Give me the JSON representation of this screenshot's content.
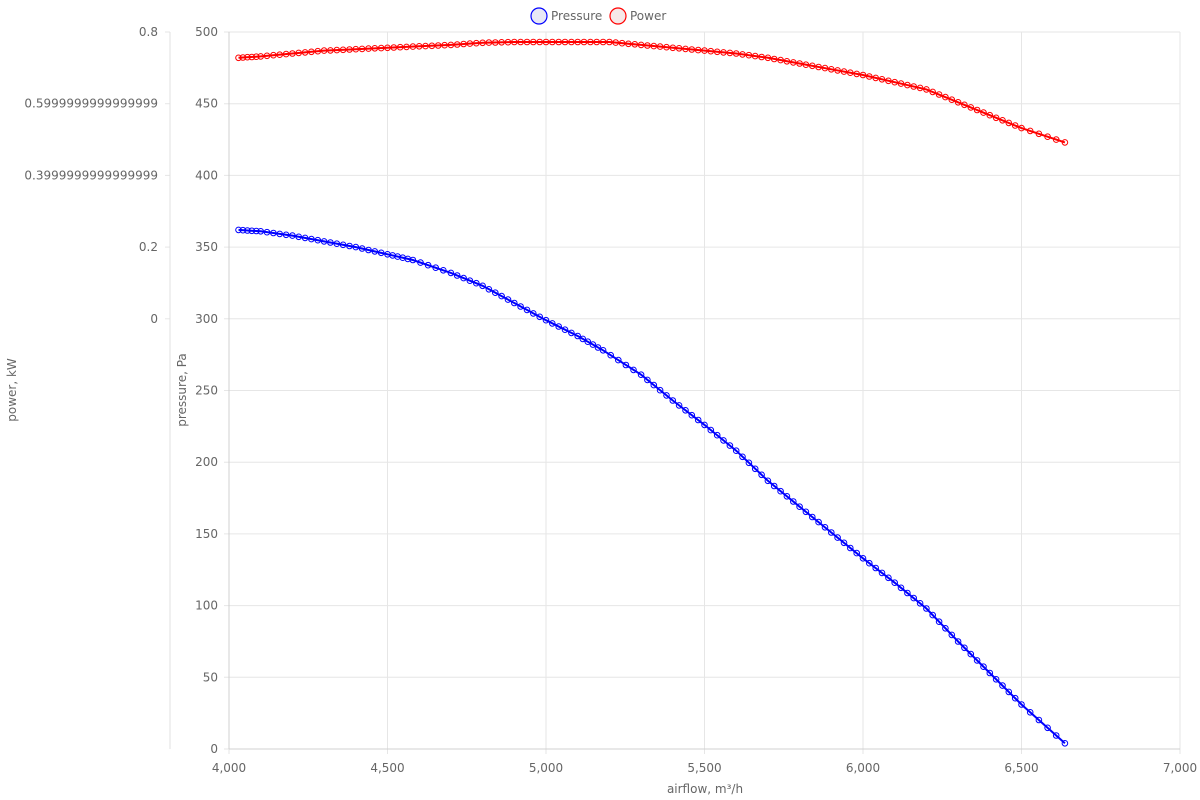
{
  "chart_data": {
    "type": "line",
    "x_axis": {
      "label": "airflow, m³/h",
      "range": [
        4000,
        7000
      ],
      "ticks": [
        4000,
        4500,
        5000,
        5500,
        6000,
        6500,
        7000
      ],
      "tick_labels": [
        "4,000",
        "4,500",
        "5,000",
        "5,500",
        "6,000",
        "6,500",
        "7,000"
      ]
    },
    "y_axis_pressure": {
      "label": "pressure, Pa",
      "range": [
        0,
        500
      ],
      "ticks": [
        0,
        50,
        100,
        150,
        200,
        250,
        300,
        350,
        400,
        450,
        500
      ],
      "tick_labels": [
        "0",
        "50",
        "100",
        "150",
        "200",
        "250",
        "300",
        "350",
        "400",
        "450",
        "500"
      ]
    },
    "y_axis_power": {
      "label": "power, kW",
      "ticks": [
        0,
        0.2,
        0.4,
        0.6,
        0.8
      ],
      "tick_labels": [
        "0",
        "0.2",
        "0.3999999999999999",
        "0.5999999999999999",
        "0.8"
      ]
    },
    "legend": {
      "position": "top-center",
      "entries": [
        "Pressure",
        "Power"
      ]
    },
    "grid": true,
    "series": [
      {
        "name": "Pressure",
        "axis": "pressure",
        "color": "#0000ff",
        "points": [
          [
            4030,
            362
          ],
          [
            4100,
            361
          ],
          [
            4200,
            358
          ],
          [
            4300,
            354
          ],
          [
            4400,
            350
          ],
          [
            4500,
            345
          ],
          [
            4580,
            341
          ],
          [
            4700,
            332
          ],
          [
            4800,
            323
          ],
          [
            4900,
            311
          ],
          [
            5000,
            299
          ],
          [
            5100,
            288
          ],
          [
            5180,
            278
          ],
          [
            5300,
            261
          ],
          [
            5400,
            243
          ],
          [
            5500,
            226
          ],
          [
            5600,
            208
          ],
          [
            5700,
            187
          ],
          [
            5800,
            169
          ],
          [
            5900,
            151
          ],
          [
            6000,
            133
          ],
          [
            6100,
            116
          ],
          [
            6200,
            98
          ],
          [
            6300,
            75
          ],
          [
            6400,
            53
          ],
          [
            6500,
            31
          ],
          [
            6637,
            4
          ]
        ]
      },
      {
        "name": "Power",
        "axis": "pressure",
        "color": "#ff0000",
        "points": [
          [
            4030,
            482
          ],
          [
            4100,
            483
          ],
          [
            4200,
            485
          ],
          [
            4300,
            487
          ],
          [
            4400,
            488
          ],
          [
            4500,
            489
          ],
          [
            4600,
            490
          ],
          [
            4700,
            491
          ],
          [
            4800,
            492.5
          ],
          [
            4900,
            493
          ],
          [
            5000,
            493
          ],
          [
            5100,
            493
          ],
          [
            5200,
            493
          ],
          [
            5300,
            491
          ],
          [
            5400,
            489
          ],
          [
            5500,
            487
          ],
          [
            5600,
            485
          ],
          [
            5700,
            482
          ],
          [
            5800,
            478
          ],
          [
            5900,
            474
          ],
          [
            6000,
            470
          ],
          [
            6100,
            465
          ],
          [
            6200,
            460
          ],
          [
            6300,
            451
          ],
          [
            6400,
            442
          ],
          [
            6500,
            433
          ],
          [
            6637,
            423
          ]
        ]
      }
    ]
  }
}
